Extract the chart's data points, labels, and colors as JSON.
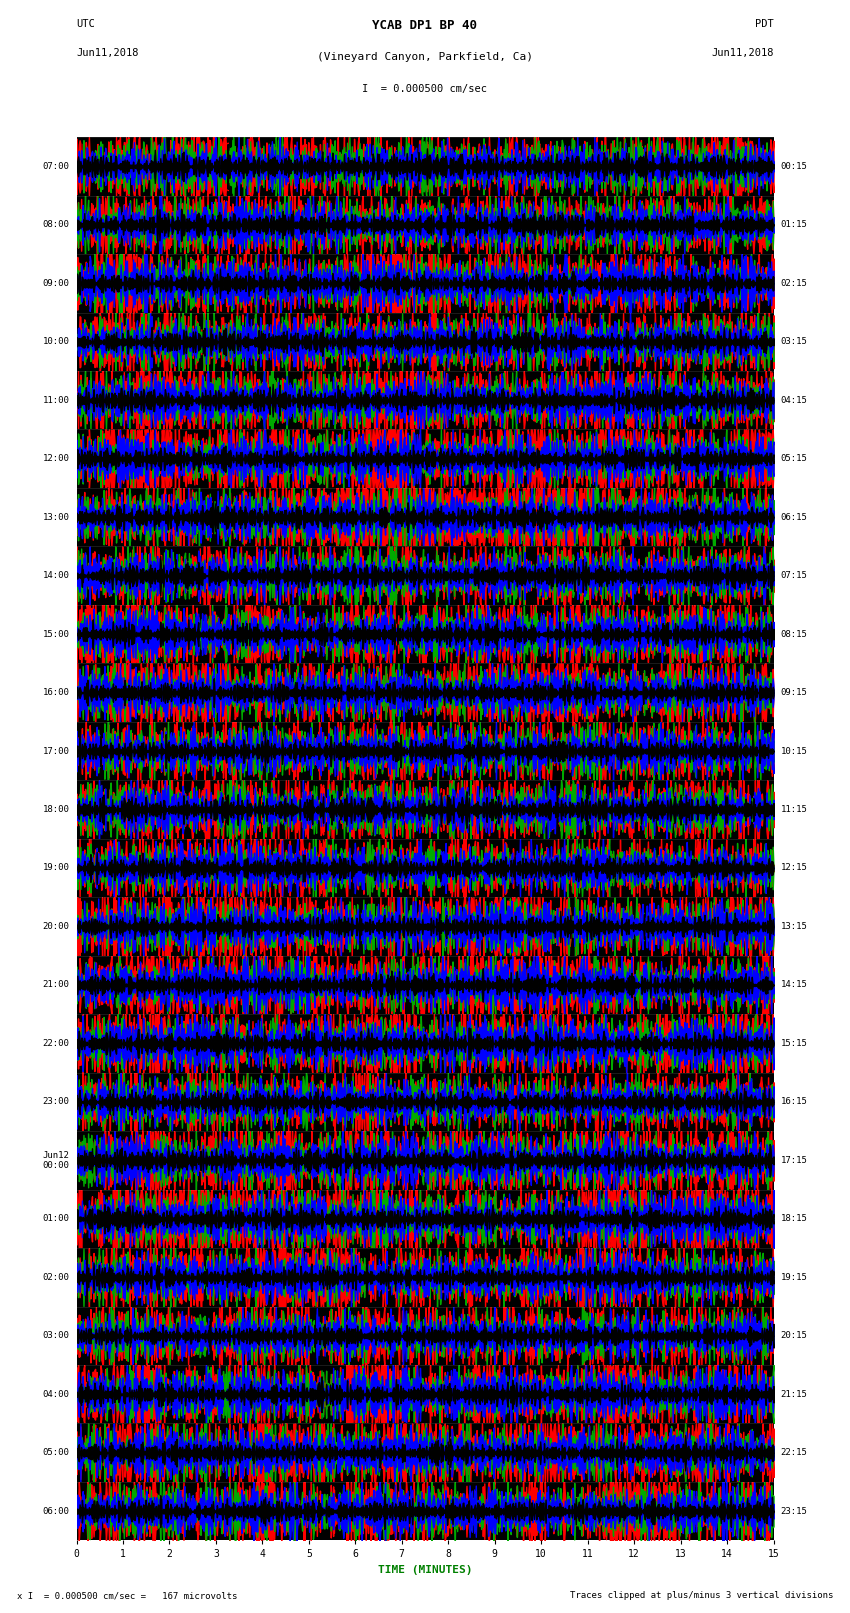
{
  "title_line1": "YCAB DP1 BP 40",
  "title_line2": "(Vineyard Canyon, Parkfield, Ca)",
  "scale_text": "I  = 0.000500 cm/sec",
  "left_label": "UTC",
  "left_date": "Jun11,2018",
  "right_label": "PDT",
  "right_date": "Jun11,2018",
  "xlabel": "TIME (MINUTES)",
  "footer_left": "x I  = 0.000500 cm/sec =   167 microvolts",
  "footer_right": "Traces clipped at plus/minus 3 vertical divisions",
  "left_times": [
    "07:00",
    "08:00",
    "09:00",
    "10:00",
    "11:00",
    "12:00",
    "13:00",
    "14:00",
    "15:00",
    "16:00",
    "17:00",
    "18:00",
    "19:00",
    "20:00",
    "21:00",
    "22:00",
    "23:00",
    "Jun12\n00:00",
    "01:00",
    "02:00",
    "03:00",
    "04:00",
    "05:00",
    "06:00"
  ],
  "right_times": [
    "00:15",
    "01:15",
    "02:15",
    "03:15",
    "04:15",
    "05:15",
    "06:15",
    "07:15",
    "08:15",
    "09:15",
    "10:15",
    "11:15",
    "12:15",
    "13:15",
    "14:15",
    "15:15",
    "16:15",
    "17:15",
    "18:15",
    "19:15",
    "20:15",
    "21:15",
    "22:15",
    "23:15"
  ],
  "n_rows": 24,
  "x_min": 0,
  "x_max": 15,
  "x_ticks": [
    0,
    1,
    2,
    3,
    4,
    5,
    6,
    7,
    8,
    9,
    10,
    11,
    12,
    13,
    14,
    15
  ],
  "bg_color": "#ffffff",
  "seismo_colors": [
    "#ff0000",
    "#00aa00",
    "#0000ff",
    "#000000"
  ],
  "fig_width": 8.5,
  "fig_height": 16.13,
  "dpi": 100
}
